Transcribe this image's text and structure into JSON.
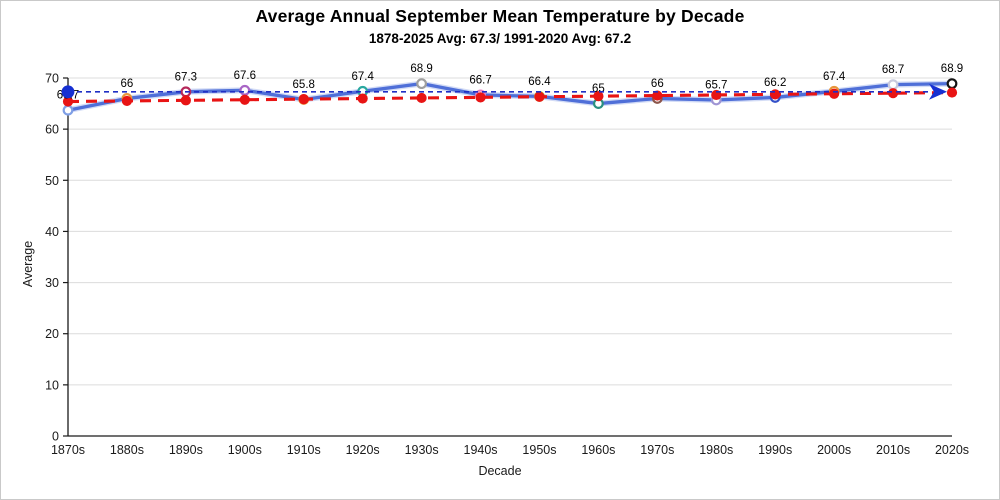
{
  "window": {
    "background": "#ffffff",
    "border_color": "#c9c9c9"
  },
  "header": {
    "title": "Average Annual September Mean Temperature by Decade",
    "subtitle": "1878-2025 Avg: 67.3/ 1991-2020 Avg: 67.2"
  },
  "chart_data": {
    "type": "line",
    "title": "Average Annual September Mean Temperature by Decade",
    "subtitle": "1878-2025 Avg: 67.3/ 1991-2020 Avg: 67.2",
    "xlabel": "Decade",
    "ylabel": "Average",
    "ylim": [
      0,
      70
    ],
    "yticks": [
      0,
      10,
      20,
      30,
      40,
      50,
      60,
      70
    ],
    "grid": "horizontal-only",
    "legend_position": "none",
    "categories": [
      "1870s",
      "1880s",
      "1890s",
      "1900s",
      "1910s",
      "1920s",
      "1930s",
      "1940s",
      "1950s",
      "1960s",
      "1970s",
      "1980s",
      "1990s",
      "2000s",
      "2010s",
      "2020s"
    ],
    "series": [
      {
        "name": "Decade mean temperature",
        "type": "line",
        "line_color": "#4f6fd8",
        "line_halo_color": "#9db2ea",
        "values": [
          63.7,
          66,
          67.3,
          67.6,
          65.8,
          67.4,
          68.9,
          66.7,
          66.4,
          65,
          66,
          65.7,
          66.2,
          67.4,
          68.7,
          68.9
        ],
        "point_labels": [
          "63.7",
          "66",
          "67.3",
          "67.6",
          "65.8",
          "67.4",
          "68.9",
          "66.7",
          "66.4",
          "65",
          "66",
          "65.7",
          "66.2",
          "67.4",
          "68.7",
          "68.9"
        ],
        "marker_fill": "#ffffff",
        "marker_edge_colors": [
          "#7f9fe6",
          "#e8953a",
          "#b5285a",
          "#a865c5",
          "#e8953a",
          "#2aa8a0",
          "#9f9f9f",
          "#e87fc2",
          "#b9bd35",
          "#2a8f80",
          "#8c564b",
          "#9f95d4",
          "#3350c8",
          "#e8953a",
          "#c9cadd",
          "#141414"
        ]
      },
      {
        "name": "Linear trend (with per-decade dots)",
        "type": "trend-dashed",
        "color": "#e81414",
        "start_value": 65.4,
        "end_value": 67.15,
        "dot_color": "#e81414"
      },
      {
        "name": "Overall average reference line",
        "type": "reference-dashed",
        "color": "#1f2fc4",
        "value": 67.3,
        "start_marker": "filled-circle",
        "end_marker": "arrow-right",
        "marker_color": "#1630d2"
      }
    ],
    "style": {
      "grid_color": "#dcdcdc",
      "spine_color": "#1a1a1a",
      "tick_label_color": "#1a1a1a",
      "data_label_color": "#000000",
      "data_label_font_px": 11.5,
      "tick_label_font_px": 12.5
    }
  }
}
